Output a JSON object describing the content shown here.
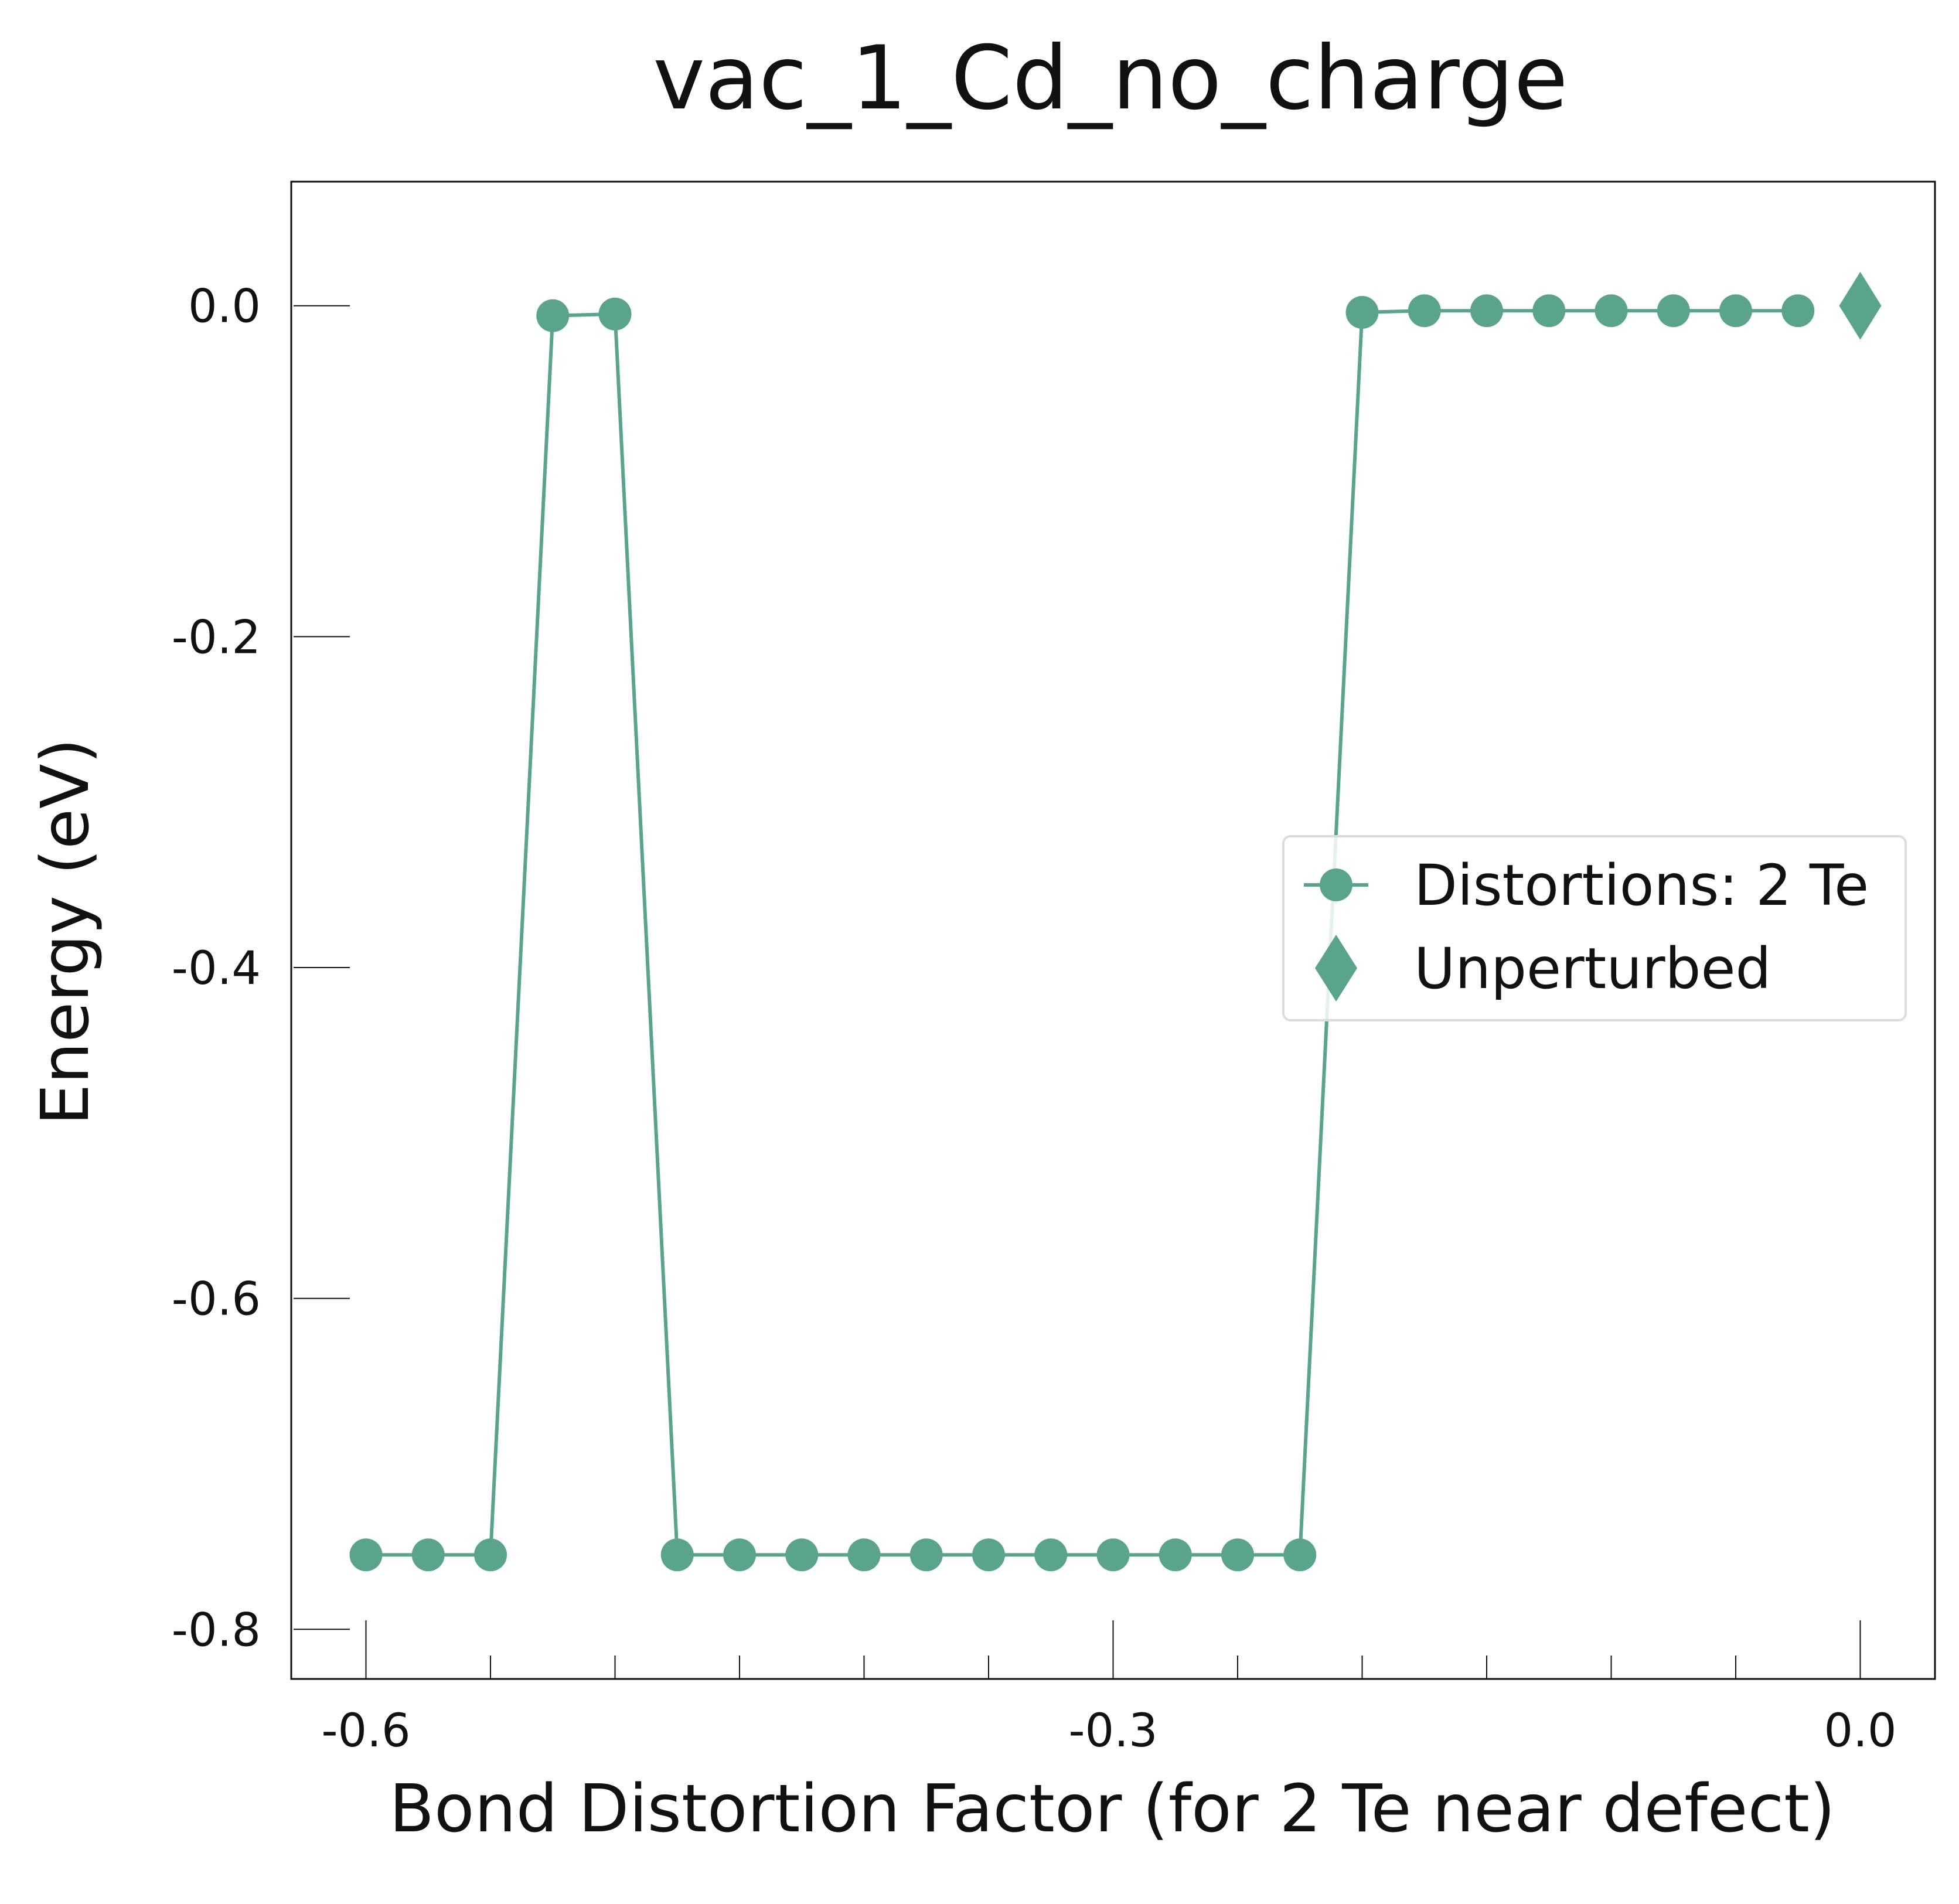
{
  "chart_data": {
    "type": "line",
    "title": "vac_1_Cd_no_charge",
    "xlabel": "Bond Distortion Factor (for 2 Te near defect)",
    "ylabel": "Energy (eV)",
    "xlim": [
      -0.63,
      0.03
    ],
    "ylim": [
      -0.83,
      0.075
    ],
    "xticks": [
      -0.6,
      -0.3,
      0.0
    ],
    "xtick_labels": [
      "-0.6",
      "-0.3",
      "0.0"
    ],
    "yticks": [
      0.0,
      -0.2,
      -0.4,
      -0.6,
      -0.8
    ],
    "ytick_labels": [
      "0.0",
      "-0.2",
      "-0.4",
      "-0.6",
      "-0.8"
    ],
    "grid": false,
    "legend_position": "center-right",
    "series": [
      {
        "name": "Distortions: 2 Te",
        "marker": "circle",
        "color": "#5aa48c",
        "x": [
          -0.6,
          -0.575,
          -0.55,
          -0.525,
          -0.5,
          -0.475,
          -0.45,
          -0.425,
          -0.4,
          -0.375,
          -0.35,
          -0.325,
          -0.3,
          -0.275,
          -0.25,
          -0.225,
          -0.2,
          -0.175,
          -0.15,
          -0.125,
          -0.1,
          -0.075,
          -0.05,
          -0.025
        ],
        "y": [
          -0.755,
          -0.755,
          -0.755,
          -0.006,
          -0.005,
          -0.755,
          -0.755,
          -0.755,
          -0.755,
          -0.755,
          -0.755,
          -0.755,
          -0.755,
          -0.755,
          -0.755,
          -0.755,
          -0.004,
          -0.003,
          -0.003,
          -0.003,
          -0.003,
          -0.003,
          -0.003,
          -0.003
        ]
      },
      {
        "name": "Unperturbed",
        "marker": "diamond",
        "color": "#5aa48c",
        "x": [
          0.0
        ],
        "y": [
          0.0
        ]
      }
    ]
  }
}
